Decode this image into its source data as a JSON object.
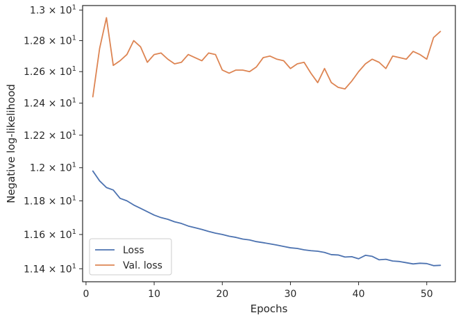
{
  "chart_data": {
    "type": "line",
    "xlabel": "Epochs",
    "ylabel": "Negative log-likelihood",
    "xlim": [
      -0.5,
      54.2
    ],
    "ylim": [
      11.325,
      13.03
    ],
    "yscale": "log",
    "xticks": [
      0,
      10,
      20,
      30,
      40,
      50
    ],
    "xtick_labels": [
      "0",
      "10",
      "20",
      "30",
      "40",
      "50"
    ],
    "yticks": [
      11.4,
      11.6,
      11.8,
      12.0,
      12.2,
      12.4,
      12.6,
      12.8,
      13.0
    ],
    "ytick_labels": [
      {
        "base": "1.14 × 10",
        "exp": "1"
      },
      {
        "base": "1.16 × 10",
        "exp": "1"
      },
      {
        "base": "1.18 × 10",
        "exp": "1"
      },
      {
        "base": "1.2 × 10",
        "exp": "1"
      },
      {
        "base": "1.22 × 10",
        "exp": "1"
      },
      {
        "base": "1.24 × 10",
        "exp": "1"
      },
      {
        "base": "1.26 × 10",
        "exp": "1"
      },
      {
        "base": "1.28 × 10",
        "exp": "1"
      },
      {
        "base": "1.3 × 10",
        "exp": "1"
      }
    ],
    "grid": false,
    "legend_position": "lower-left",
    "x": [
      1,
      2,
      3,
      4,
      5,
      6,
      7,
      8,
      9,
      10,
      11,
      12,
      13,
      14,
      15,
      16,
      17,
      18,
      19,
      20,
      21,
      22,
      23,
      24,
      25,
      26,
      27,
      28,
      29,
      30,
      31,
      32,
      33,
      34,
      35,
      36,
      37,
      38,
      39,
      40,
      41,
      42,
      43,
      44,
      45,
      46,
      47,
      48,
      49,
      50,
      51,
      52
    ],
    "series": [
      {
        "name": "Loss",
        "color": "#4c72b0",
        "values": [
          11.98,
          11.92,
          11.88,
          11.865,
          11.815,
          11.8,
          11.775,
          11.755,
          11.735,
          11.715,
          11.7,
          11.69,
          11.675,
          11.665,
          11.65,
          11.64,
          11.63,
          11.618,
          11.608,
          11.6,
          11.59,
          11.583,
          11.573,
          11.568,
          11.558,
          11.552,
          11.545,
          11.538,
          11.53,
          11.522,
          11.518,
          11.51,
          11.505,
          11.502,
          11.495,
          11.482,
          11.48,
          11.468,
          11.47,
          11.458,
          11.478,
          11.472,
          11.452,
          11.455,
          11.445,
          11.442,
          11.435,
          11.428,
          11.432,
          11.43,
          11.418,
          11.42
        ]
      },
      {
        "name": "Val. loss",
        "color": "#dd8452",
        "values": [
          12.44,
          12.75,
          12.95,
          12.64,
          12.67,
          12.71,
          12.8,
          12.76,
          12.66,
          12.71,
          12.72,
          12.68,
          12.65,
          12.66,
          12.71,
          12.69,
          12.67,
          12.72,
          12.71,
          12.61,
          12.59,
          12.61,
          12.61,
          12.6,
          12.63,
          12.69,
          12.7,
          12.68,
          12.67,
          12.62,
          12.65,
          12.66,
          12.59,
          12.53,
          12.62,
          12.53,
          12.5,
          12.49,
          12.54,
          12.6,
          12.65,
          12.68,
          12.66,
          12.62,
          12.7,
          12.69,
          12.68,
          12.73,
          12.71,
          12.68,
          12.82,
          12.86
        ]
      }
    ]
  }
}
